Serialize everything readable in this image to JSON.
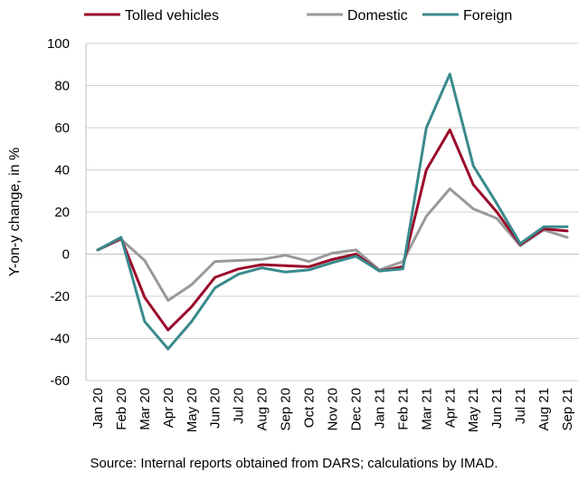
{
  "chart_data": {
    "type": "line",
    "title": "",
    "xlabel": "",
    "ylabel": "Y-on-y change, in %",
    "ylim": [
      -60,
      100
    ],
    "yticks": [
      -60,
      -40,
      -20,
      0,
      20,
      40,
      60,
      80,
      100
    ],
    "grid": "horizontal",
    "legend_position": "top",
    "categories": [
      "Jan 20",
      "Feb 20",
      "Mar 20",
      "Apr 20",
      "May 20",
      "Jun 20",
      "Jul 20",
      "Aug 20",
      "Sep 20",
      "Oct 20",
      "Nov 20",
      "Dec 20",
      "Jan 21",
      "Feb 21",
      "Mar 21",
      "Apr 21",
      "May 21",
      "Jun 21",
      "Jul 21",
      "Aug 21",
      "Sep 21"
    ],
    "series": [
      {
        "name": "Tolled vehicles",
        "color": "#9b0a2a",
        "values": [
          2,
          7.5,
          -20.5,
          -36,
          -25,
          -11,
          -7,
          -5,
          -5.5,
          -6,
          -2.5,
          0,
          -8,
          -6,
          40,
          59,
          33,
          20,
          4.5,
          12,
          11
        ]
      },
      {
        "name": "Domestic",
        "color": "#999999",
        "values": [
          2,
          7,
          -3,
          -22,
          -14.5,
          -3.5,
          -3,
          -2.5,
          -0.5,
          -3.5,
          0.5,
          2,
          -7.5,
          -3.5,
          18,
          31,
          21.5,
          17,
          4,
          11.5,
          8
        ]
      },
      {
        "name": "Foreign",
        "color": "#3a8a8c",
        "values": [
          2,
          8,
          -32,
          -45,
          -32,
          -16,
          -9.5,
          -6.5,
          -8.5,
          -7.5,
          -4,
          -1,
          -8,
          -7,
          60,
          85.5,
          42,
          24,
          5,
          13,
          13
        ]
      }
    ]
  },
  "source_text": "Source: Internal reports obtained from DARS; calculations by IMAD."
}
